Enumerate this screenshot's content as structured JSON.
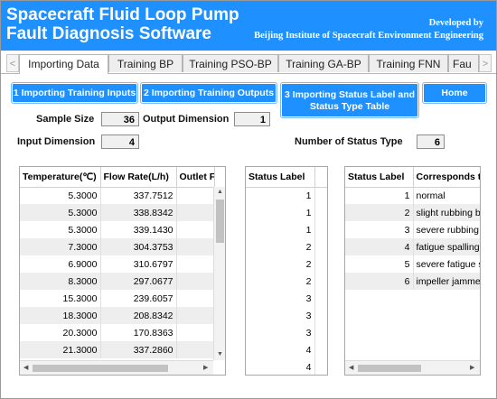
{
  "header": {
    "title_line1": "Spacecraft Fluid Loop Pump",
    "title_line2": "Fault Diagnosis Software",
    "developer_line1": "Developed by",
    "developer_line2": "Beijing Institute of Spacecraft Environment Engineering",
    "bg_color": "#1e90ff"
  },
  "tabs": [
    {
      "label": "Importing Data",
      "active": true
    },
    {
      "label": "Training BP"
    },
    {
      "label": "Training PSO-BP"
    },
    {
      "label": "Training GA-BP"
    },
    {
      "label": "Training FNN"
    },
    {
      "label": "Fau"
    }
  ],
  "tab_arrows": {
    "left": "<",
    "right": ">"
  },
  "buttons": {
    "import_inputs": "1 Importing Training Inputs",
    "import_outputs": "2 Importing Training Outputs",
    "import_status_line1": "3 Importing Status Label and",
    "import_status_line2": "Status Type Table",
    "home": "Home"
  },
  "fields": {
    "sample_size_label": "Sample Size",
    "sample_size_value": "36",
    "output_dimension_label": "Output Dimension",
    "output_dimension_value": "1",
    "input_dimension_label": "Input Dimension",
    "input_dimension_value": "4",
    "status_type_count_label": "Number of Status Type",
    "status_type_count_value": "6"
  },
  "inputs_table": {
    "columns": [
      "Temperature(℃)",
      "Flow Rate(L/h)",
      "Outlet F"
    ],
    "rows": [
      [
        "5.3000",
        "337.7512"
      ],
      [
        "5.3000",
        "338.8342"
      ],
      [
        "5.3000",
        "339.1430"
      ],
      [
        "7.3000",
        "304.3753"
      ],
      [
        "6.9000",
        "310.6797"
      ],
      [
        "8.3000",
        "297.0677"
      ],
      [
        "15.3000",
        "239.6057"
      ],
      [
        "18.3000",
        "208.8342"
      ],
      [
        "20.3000",
        "170.8363"
      ],
      [
        "21.3000",
        "337.2860"
      ]
    ]
  },
  "status_label_table": {
    "columns": [
      "Status Label"
    ],
    "rows": [
      "1",
      "1",
      "1",
      "2",
      "2",
      "2",
      "3",
      "3",
      "3",
      "4",
      "4"
    ]
  },
  "status_type_table": {
    "columns": [
      "Status Label",
      "Corresponds t"
    ],
    "rows": [
      [
        "1",
        "normal"
      ],
      [
        "2",
        "slight rubbing b"
      ],
      [
        "3",
        "severe rubbing"
      ],
      [
        "4",
        "fatigue spalling"
      ],
      [
        "5",
        "severe fatigue s"
      ],
      [
        "6",
        "impeller jamme"
      ]
    ]
  },
  "icons": {
    "scroll_up": "▲",
    "scroll_down": "▼",
    "scroll_left": "◀",
    "scroll_right": "▶"
  }
}
